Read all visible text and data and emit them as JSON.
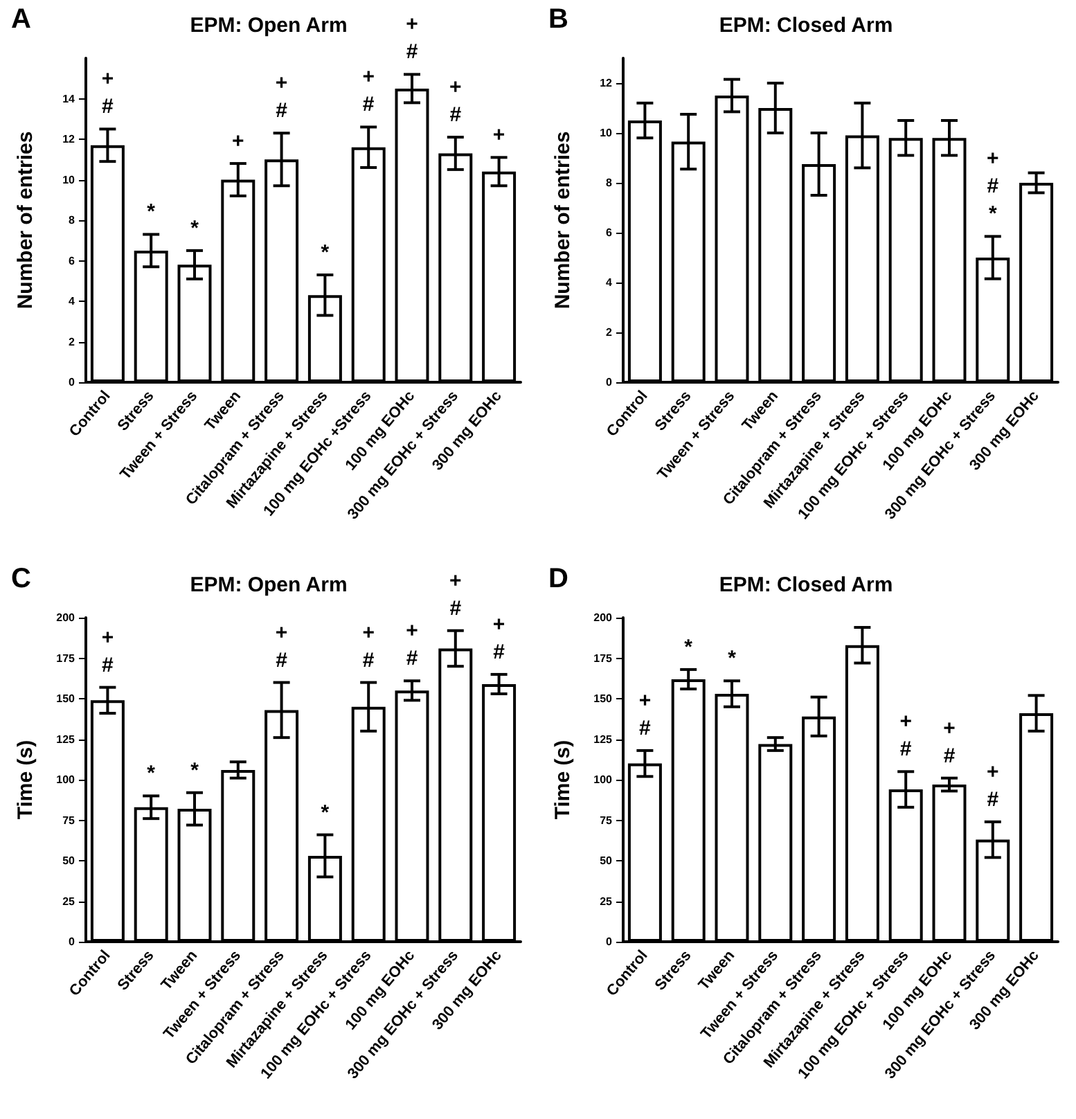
{
  "chart_data": [
    {
      "type": "bar",
      "title": "EPM: Open Arm",
      "ylabel": "Number of entries",
      "categories": [
        "Control",
        "Stress",
        "Tween + Stress",
        "Tween",
        "Citalopram + Stress",
        "Mirtazapine + Stress",
        "100 mg EOHc +Stress",
        "100 mg EOHc",
        "300 mg EOHc + Stress",
        "300 mg EOHc"
      ],
      "values": [
        11.7,
        6.5,
        5.8,
        10.0,
        11.0,
        4.3,
        11.6,
        14.5,
        11.3,
        10.4
      ],
      "errors": [
        0.8,
        0.8,
        0.7,
        0.8,
        1.3,
        1.0,
        1.0,
        0.7,
        0.8,
        0.7
      ],
      "color": "#ffffff",
      "ylim": [
        0,
        16
      ],
      "yticks": [
        0,
        2,
        4,
        6,
        8,
        10,
        12,
        14
      ],
      "grid": false,
      "annotations": [
        "A",
        {
          "text": "+\n#",
          "x": "Control",
          "y": 12.5
        },
        {
          "text": "*",
          "x": "Stress",
          "y": 7.3
        },
        {
          "text": "*",
          "x": "Tween + Stress",
          "y": 6.5
        },
        {
          "text": "+",
          "x": "Tween",
          "y": 10.8
        },
        {
          "text": "+\n#",
          "x": "Citalopram + Stress",
          "y": 12.3
        },
        {
          "text": "*",
          "x": "Mirtazapine + Stress",
          "y": 5.3
        },
        {
          "text": "+\n#",
          "x": "100 mg EOHc +Stress",
          "y": 12.6
        },
        {
          "text": "+\n#",
          "x": "100 mg EOHc",
          "y": 15.2
        },
        {
          "text": "+\n#",
          "x": "300 mg EOHc + Stress",
          "y": 12.1
        },
        {
          "text": "+",
          "x": "300 mg EOHc",
          "y": 11.1
        }
      ]
    },
    {
      "type": "bar",
      "title": "EPM: Closed Arm",
      "ylabel": "Number of entries",
      "categories": [
        "Control",
        "Stress",
        "Tween + Stress",
        "Tween",
        "Citalopram + Stress",
        "Mirtazapine + Stress",
        "100 mg EOHc + Stress",
        "100 mg EOHc",
        "300 mg EOHc + Stress",
        "300 mg EOHc"
      ],
      "values": [
        10.5,
        9.65,
        11.5,
        11.0,
        8.75,
        9.9,
        9.8,
        9.8,
        5.0,
        8.0
      ],
      "errors": [
        0.7,
        1.1,
        0.65,
        1.0,
        1.25,
        1.3,
        0.7,
        0.7,
        0.85,
        0.4
      ],
      "color": "#ffffff",
      "ylim": [
        0,
        13
      ],
      "yticks": [
        0,
        2,
        4,
        6,
        8,
        10,
        12
      ],
      "grid": false,
      "annotations": [
        "B",
        {
          "text": "+\n#\n*",
          "x": "300 mg EOHc + Stress",
          "y": 5.85
        }
      ]
    },
    {
      "type": "bar",
      "title": "EPM: Open Arm",
      "ylabel": "Time (s)",
      "categories": [
        "Control",
        "Stress",
        "Tween",
        "Tween + Stress",
        "Citalopram + Stress",
        "Mirtazapine + Stress",
        "100 mg EOHc + Stress",
        "100 mg EOHc",
        "300 mg EOHc + Stress",
        "300 mg EOHc"
      ],
      "values": [
        149,
        83,
        82,
        106,
        143,
        53,
        145,
        155,
        181,
        159
      ],
      "errors": [
        8,
        7,
        10,
        5,
        17,
        13,
        15,
        6,
        11,
        6
      ],
      "color": "#ffffff",
      "ylim": [
        0,
        200
      ],
      "yticks": [
        0,
        25,
        50,
        75,
        100,
        125,
        150,
        175,
        200
      ],
      "grid": false,
      "annotations": [
        "C",
        {
          "text": "+\n#",
          "x": "Control",
          "y": 157
        },
        {
          "text": "*",
          "x": "Stress",
          "y": 90
        },
        {
          "text": "*",
          "x": "Tween",
          "y": 92
        },
        {
          "text": "+\n#",
          "x": "Citalopram + Stress",
          "y": 160
        },
        {
          "text": "*",
          "x": "Mirtazapine + Stress",
          "y": 66
        },
        {
          "text": "+\n#",
          "x": "100 mg EOHc + Stress",
          "y": 160
        },
        {
          "text": "+\n#",
          "x": "100 mg EOHc",
          "y": 161
        },
        {
          "text": "+\n#",
          "x": "300 mg EOHc + Stress",
          "y": 192
        },
        {
          "text": "+\n#",
          "x": "300 mg EOHc",
          "y": 165
        }
      ]
    },
    {
      "type": "bar",
      "title": "EPM: Closed Arm",
      "ylabel": "Time (s)",
      "categories": [
        "Control",
        "Stress",
        "Tween",
        "Tween + Stress",
        "Citalopram + Stress",
        "Mirtazapine + Stress",
        "100 mg EOHc + Stress",
        "100 mg EOHc",
        "300 mg EOHc + Stress",
        "300 mg EOHc"
      ],
      "values": [
        110,
        162,
        153,
        122,
        139,
        183,
        94,
        97,
        63,
        141
      ],
      "errors": [
        8,
        6,
        8,
        4,
        12,
        11,
        11,
        4,
        11,
        11
      ],
      "color": "#ffffff",
      "ylim": [
        0,
        200
      ],
      "yticks": [
        0,
        25,
        50,
        75,
        100,
        125,
        150,
        175,
        200
      ],
      "grid": false,
      "annotations": [
        "D",
        {
          "text": "+\n#",
          "x": "Control",
          "y": 118
        },
        {
          "text": "*",
          "x": "Stress",
          "y": 168
        },
        {
          "text": "*",
          "x": "Tween",
          "y": 161
        },
        {
          "text": "+\n#",
          "x": "100 mg EOHc + Stress",
          "y": 105
        },
        {
          "text": "+\n#",
          "x": "100 mg EOHc",
          "y": 101
        },
        {
          "text": "+\n#",
          "x": "300 mg EOHc + Stress",
          "y": 74
        }
      ]
    }
  ]
}
